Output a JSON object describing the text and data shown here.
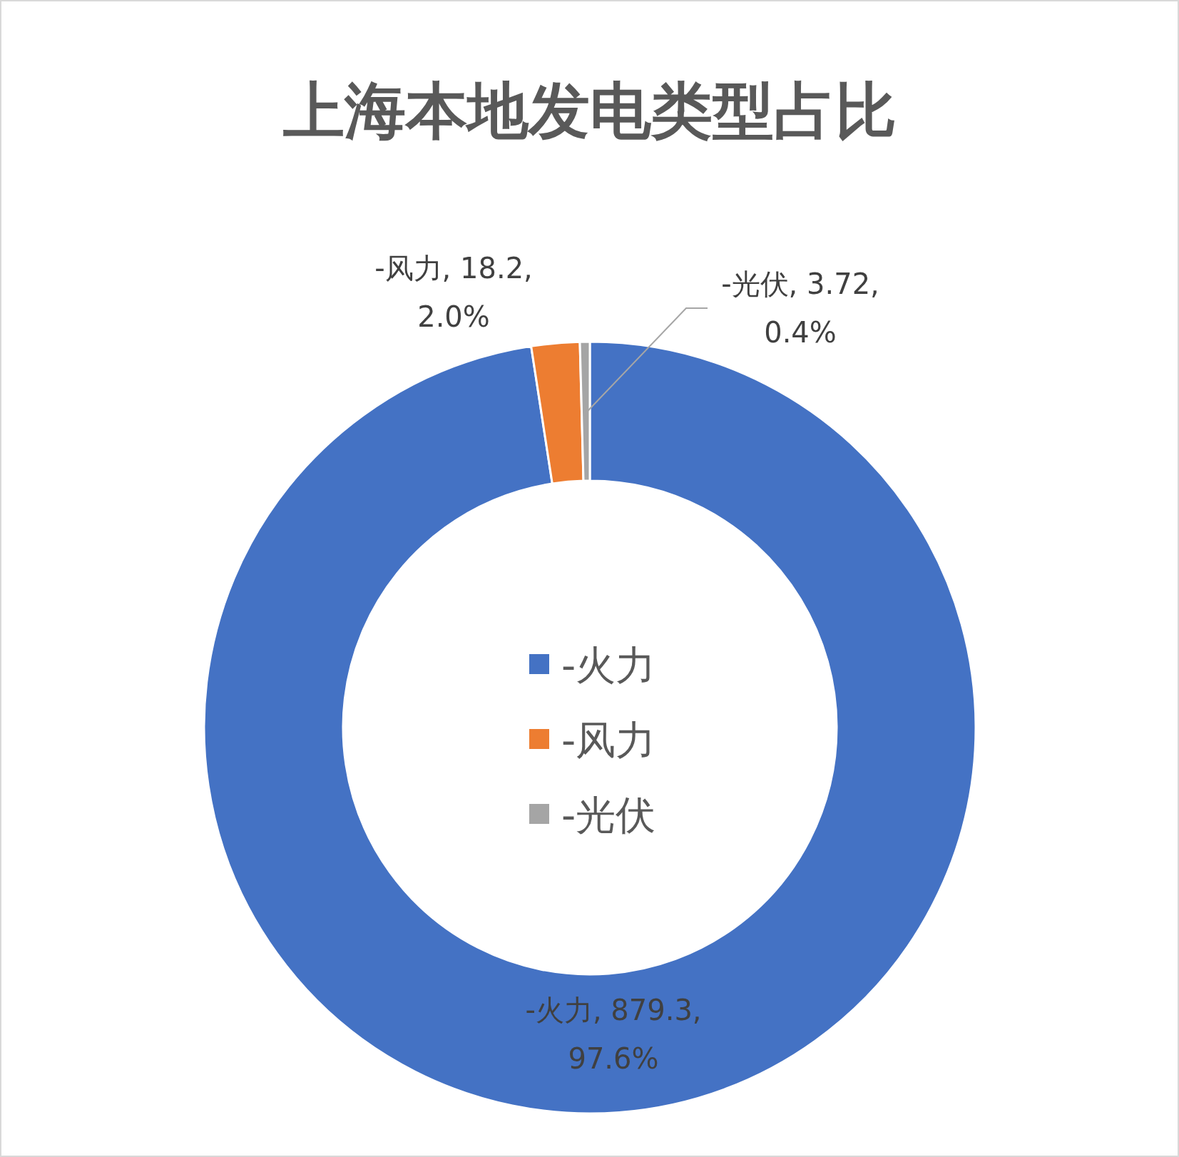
{
  "chart_data": {
    "type": "donut",
    "title": "上海本地发电类型占比",
    "categories": [
      "-火力",
      "-风力",
      "-光伏"
    ],
    "values": [
      879.3,
      18.2,
      3.72
    ],
    "colors": [
      "#4472c4",
      "#ed7d31",
      "#a5a5a5"
    ],
    "value_labels": [
      "-火力, 879.3, 97.6%",
      "-风力, 18.2, 2.0%",
      "-光伏, 3.72, 0.4%"
    ],
    "legend": "center"
  }
}
